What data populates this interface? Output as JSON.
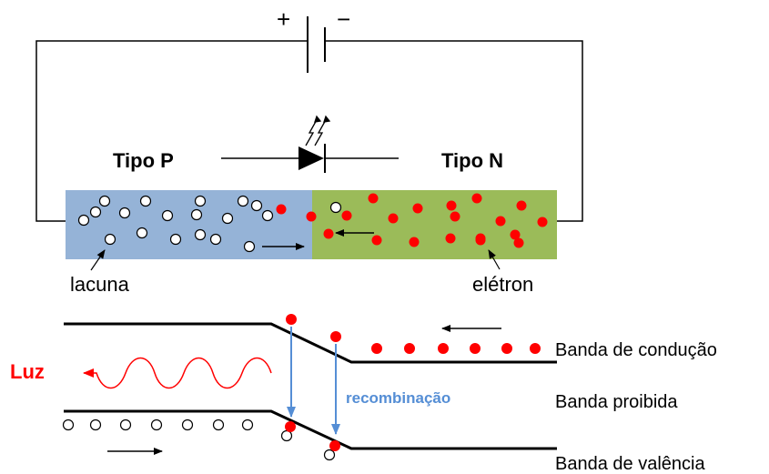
{
  "battery": {
    "plus": "+",
    "minus": "−"
  },
  "regions": {
    "p_label": "Tipo P",
    "n_label": "Tipo N"
  },
  "callouts": {
    "hole": "lacuna",
    "electron": "elétron"
  },
  "bands": {
    "conduction": "Banda de condução",
    "forbidden": "Banda proibida",
    "valence": "Banda de valência"
  },
  "light_label": "Luz",
  "recombination_label": "recombinação",
  "colors": {
    "p_region": "#95b3d7",
    "n_region": "#9bbb59",
    "electron": "#ff0000",
    "light": "#ff0000",
    "recombination": "#558ed5"
  },
  "icons": {
    "diode": "led-diode-icon",
    "emission": "light-emission-arrows-icon"
  }
}
